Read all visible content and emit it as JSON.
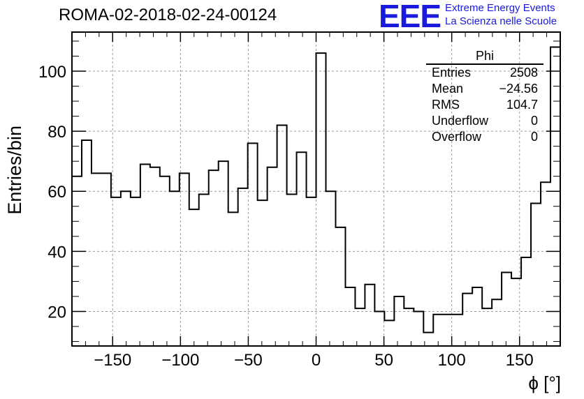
{
  "header": {
    "run_title": "ROMA-02-2018-02-24-00124",
    "logo": "EEE",
    "logo_line1": "Extreme Energy Events",
    "logo_line2": "La Scienza nelle Scuole"
  },
  "stats_box": {
    "title": "Phi",
    "rows": [
      {
        "key": "Entries",
        "value": "2508"
      },
      {
        "key": "Mean",
        "value": "−24.56"
      },
      {
        "key": "RMS",
        "value": "104.7"
      },
      {
        "key": "Underflow",
        "value": "0"
      },
      {
        "key": "Overflow",
        "value": "0"
      }
    ]
  },
  "colors": {
    "logo": "#1a1adc",
    "histogram": "#000000",
    "grid": "#9a9a9a"
  },
  "chart_data": {
    "type": "histogram",
    "ylabel": "Entries/bin",
    "xlabel": "ϕ [°]",
    "xlim": [
      -180,
      180
    ],
    "ylim": [
      8.5,
      113
    ],
    "grid": true,
    "x_ticks": [
      -150,
      -100,
      -50,
      0,
      50,
      100,
      150
    ],
    "x_tick_labels": [
      "−150",
      "−100",
      "−50",
      "0",
      "50",
      "100",
      "150"
    ],
    "y_ticks": [
      20,
      40,
      60,
      80,
      100
    ],
    "y_tick_labels": [
      "20",
      "40",
      "60",
      "80",
      "100"
    ],
    "bin_edges_start": -180,
    "bin_width": 7.2,
    "values": [
      65,
      77,
      66,
      66,
      58,
      60,
      58,
      69,
      68,
      65,
      60,
      66,
      54,
      59,
      67,
      70,
      53,
      61,
      76,
      57,
      68,
      82,
      59,
      73,
      58,
      106,
      60,
      48,
      28,
      21,
      29,
      20,
      17,
      25,
      21,
      20,
      13,
      19,
      19,
      19,
      26,
      28,
      21,
      24,
      33,
      31,
      38,
      56,
      63,
      108
    ]
  }
}
